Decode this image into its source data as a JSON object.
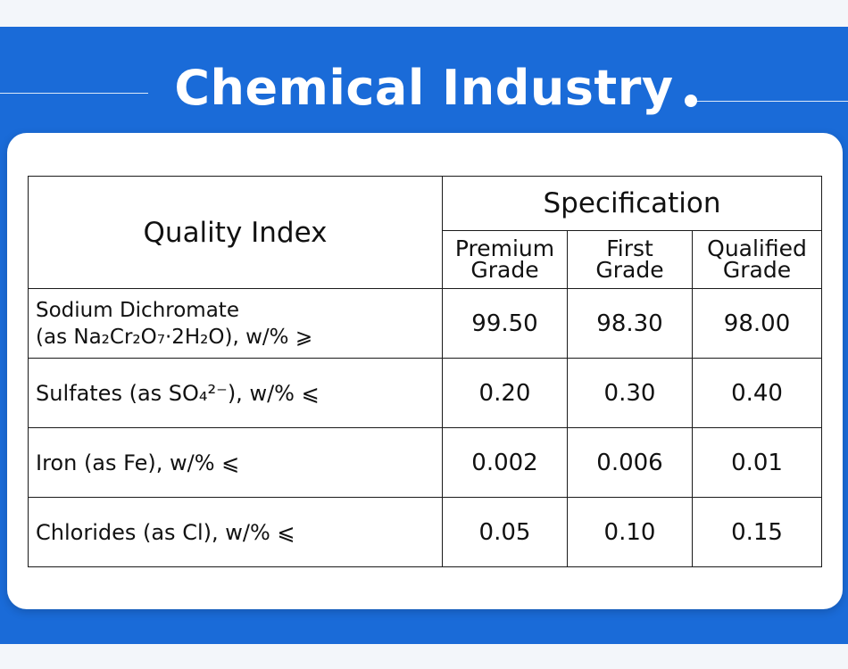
{
  "header": {
    "title": "Chemical Industry"
  },
  "table": {
    "quality_index_label": "Quality Index",
    "specification_label": "Specification",
    "grades": [
      {
        "line1": "Premium",
        "line2": "Grade"
      },
      {
        "line1": "First",
        "line2": "Grade"
      },
      {
        "line1": "Qualified",
        "line2": "Grade"
      }
    ],
    "rows": [
      {
        "label_line1": "Sodium Dichromate",
        "label_line2": "(as Na₂Cr₂O₇·2H₂O), w/% ⩾",
        "values": [
          "99.50",
          "98.30",
          "98.00"
        ]
      },
      {
        "label": "Sulfates (as SO₄²⁻), w/% ⩽",
        "values": [
          "0.20",
          "0.30",
          "0.40"
        ]
      },
      {
        "label": "Iron (as Fe), w/% ⩽",
        "values": [
          "0.002",
          "0.006",
          "0.01"
        ]
      },
      {
        "label": "Chlorides (as Cl), w/% ⩽",
        "values": [
          "0.05",
          "0.10",
          "0.15"
        ]
      }
    ]
  },
  "colors": {
    "banner_blue": "#1a6bd8",
    "card_white": "#ffffff",
    "text": "#111111"
  }
}
